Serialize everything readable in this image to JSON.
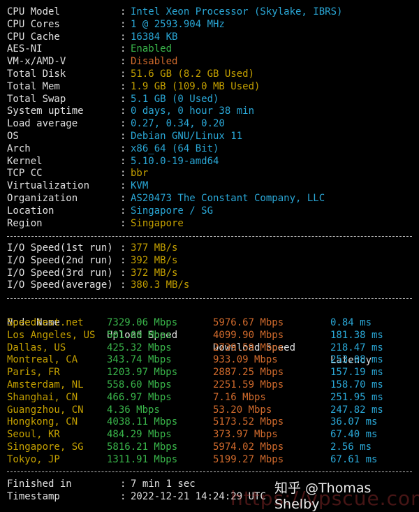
{
  "sysinfo": [
    {
      "label": "CPU Model",
      "value": "Intel Xeon Processor (Skylake, IBRS)",
      "color": "cyan"
    },
    {
      "label": "CPU Cores",
      "value": "1 @ 2593.904 MHz",
      "color": "cyan"
    },
    {
      "label": "CPU Cache",
      "value": "16384 KB",
      "color": "cyan"
    },
    {
      "label": "AES-NI",
      "value": "Enabled",
      "color": "green"
    },
    {
      "label": "VM-x/AMD-V",
      "value": "Disabled",
      "color": "orange"
    },
    {
      "label": "Total Disk",
      "value": "51.6 GB (8.2 GB Used)",
      "color": "yellow"
    },
    {
      "label": "Total Mem",
      "value": "1.9 GB (109.0 MB Used)",
      "color": "yellow"
    },
    {
      "label": "Total Swap",
      "value": "5.1 GB (0 Used)",
      "color": "cyan"
    },
    {
      "label": "System uptime",
      "value": "0 days, 0 hour 38 min",
      "color": "cyan"
    },
    {
      "label": "Load average",
      "value": "0.27, 0.34, 0.20",
      "color": "cyan"
    },
    {
      "label": "OS",
      "value": "Debian GNU/Linux 11",
      "color": "cyan"
    },
    {
      "label": "Arch",
      "value": "x86_64 (64 Bit)",
      "color": "cyan"
    },
    {
      "label": "Kernel",
      "value": "5.10.0-19-amd64",
      "color": "cyan"
    },
    {
      "label": "TCP CC",
      "value": "bbr",
      "color": "yellow"
    },
    {
      "label": "Virtualization",
      "value": "KVM",
      "color": "cyan"
    },
    {
      "label": "Organization",
      "value": "AS20473 The Constant Company, LLC",
      "color": "cyan"
    },
    {
      "label": "Location",
      "value": "Singapore / SG",
      "color": "cyan"
    },
    {
      "label": "Region",
      "value": "Singapore",
      "color": "yellow"
    }
  ],
  "io": [
    {
      "label": "I/O Speed(1st run)",
      "value": "377 MB/s"
    },
    {
      "label": "I/O Speed(2nd run)",
      "value": "392 MB/s"
    },
    {
      "label": "I/O Speed(3rd run)",
      "value": "372 MB/s"
    },
    {
      "label": "I/O Speed(average)",
      "value": "380.3 MB/s"
    }
  ],
  "speed_headers": {
    "node": "Node Name",
    "upload": "Upload Speed",
    "download": "Download Speed",
    "latency": "Latency"
  },
  "speed": [
    {
      "node": "Speedtest.net",
      "upload": "7329.06 Mbps",
      "download": "5976.67 Mbps",
      "latency": "0.84 ms"
    },
    {
      "node": "Los Angeles, US",
      "upload": "501.00 Mbps",
      "download": "4099.90 Mbps",
      "latency": "181.38 ms"
    },
    {
      "node": "Dallas, US",
      "upload": "425.32 Mbps",
      "download": "2739.59 Mbps",
      "latency": "218.47 ms"
    },
    {
      "node": "Montreal, CA",
      "upload": "343.74 Mbps",
      "download": "933.09 Mbps",
      "latency": "253.08 ms"
    },
    {
      "node": "Paris, FR",
      "upload": "1203.97 Mbps",
      "download": "2887.25 Mbps",
      "latency": "157.19 ms"
    },
    {
      "node": "Amsterdam, NL",
      "upload": "558.60 Mbps",
      "download": "2251.59 Mbps",
      "latency": "158.70 ms"
    },
    {
      "node": "Shanghai, CN",
      "upload": "466.97 Mbps",
      "download": "7.16 Mbps",
      "latency": "251.95 ms"
    },
    {
      "node": "Guangzhou, CN",
      "upload": "4.36 Mbps",
      "download": "53.20 Mbps",
      "latency": "247.82 ms"
    },
    {
      "node": "Hongkong, CN",
      "upload": "4038.11 Mbps",
      "download": "5173.52 Mbps",
      "latency": "36.07 ms"
    },
    {
      "node": "Seoul, KR",
      "upload": "484.29 Mbps",
      "download": "373.97 Mbps",
      "latency": "67.40 ms"
    },
    {
      "node": "Singapore, SG",
      "upload": "5816.21 Mbps",
      "download": "5974.02 Mbps",
      "latency": "2.56 ms"
    },
    {
      "node": "Tokyo, JP",
      "upload": "1311.91 Mbps",
      "download": "5199.27 Mbps",
      "latency": "67.61 ms"
    }
  ],
  "footer": [
    {
      "label": "Finished in",
      "value": "7 min 1 sec"
    },
    {
      "label": "Timestamp",
      "value": "2022-12-21 14:24:29 UTC"
    }
  ],
  "watermark": {
    "author": "知乎 @Thomas Shelby",
    "url": "https://vpscue.com"
  },
  "colors": {
    "cyan": "#2aa7d6",
    "green": "#39b54a",
    "yellow": "#c4a000",
    "orange": "#d06a2c",
    "background": "#000000"
  }
}
